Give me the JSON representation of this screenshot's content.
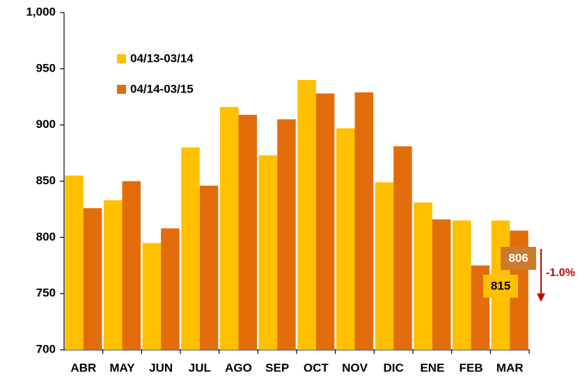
{
  "chart_data": {
    "type": "bar",
    "categories": [
      "ABR",
      "MAY",
      "JUN",
      "JUL",
      "AGO",
      "SEP",
      "OCT",
      "NOV",
      "DIC",
      "ENE",
      "FEB",
      "MAR"
    ],
    "series": [
      {
        "name": "04/13-03/14",
        "color": "#ffc000",
        "values": [
          855,
          833,
          795,
          880,
          916,
          873,
          940,
          897,
          849,
          831,
          815,
          815
        ]
      },
      {
        "name": "04/14-03/15",
        "color": "#e36c0a",
        "values": [
          826,
          850,
          808,
          846,
          909,
          905,
          928,
          929,
          881,
          816,
          775,
          806
        ]
      }
    ],
    "ylim": [
      700,
      1000
    ],
    "yticks": [
      700,
      750,
      800,
      850,
      900,
      950,
      {
        "value": 1000,
        "label": "1,000"
      }
    ],
    "annotation": "-1.0%",
    "legend": "upper left"
  }
}
